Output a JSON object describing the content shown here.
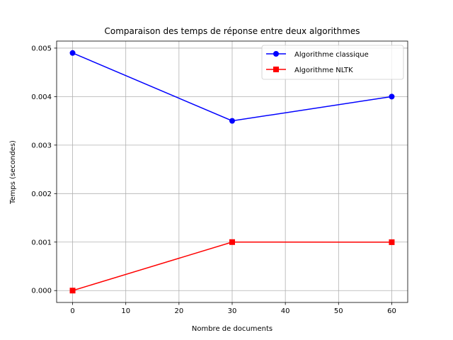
{
  "chart_data": {
    "type": "line",
    "title": "Comparaison des temps de réponse entre deux algorithmes",
    "xlabel": "Nombre de documents",
    "ylabel": "Temps (secondes)",
    "x": [
      0,
      30,
      60
    ],
    "series": [
      {
        "name": "Algorithme classique",
        "values": [
          0.0049,
          0.0035,
          0.004
        ],
        "color": "#0000ff",
        "marker": "circle"
      },
      {
        "name": "Algorithme NLTK",
        "values": [
          0.0,
          0.001,
          0.000998
        ],
        "color": "#ff0000",
        "marker": "square"
      }
    ],
    "xlim": [
      -3,
      63
    ],
    "ylim": [
      -0.000245,
      0.005145
    ],
    "xticks": [
      0,
      10,
      20,
      30,
      40,
      50,
      60
    ],
    "xtick_labels": [
      "0",
      "10",
      "20",
      "30",
      "40",
      "50",
      "60"
    ],
    "yticks": [
      0.0,
      0.001,
      0.002,
      0.003,
      0.004,
      0.005
    ],
    "ytick_labels": [
      "0.000",
      "0.001",
      "0.002",
      "0.003",
      "0.004",
      "0.005"
    ],
    "grid": true,
    "legend_position": "top-right"
  }
}
